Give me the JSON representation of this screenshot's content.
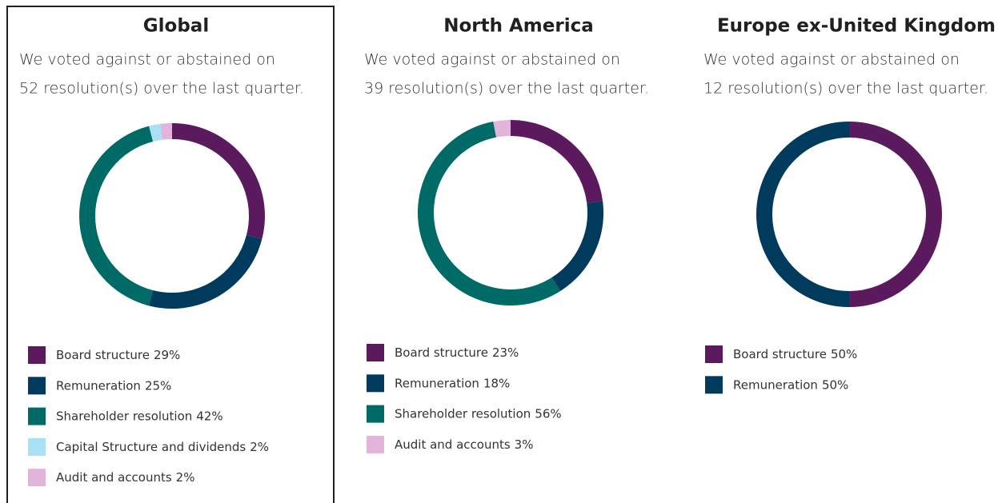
{
  "chart_data": [
    {
      "type": "pie",
      "title": "Global",
      "subtitle": [
        "We voted against or abstained on",
        "52 resolution(s) over the last quarter."
      ],
      "categories": [
        "Board structure",
        "Remuneration",
        "Shareholder resolution",
        "Capital Structure and dividends",
        "Audit and accounts"
      ],
      "values": [
        29,
        25,
        42,
        2,
        2
      ],
      "value_labels": [
        "29%",
        "25%",
        "42%",
        "2%",
        "2%"
      ],
      "colors": [
        "#5b1a5e",
        "#003a5d",
        "#006a66",
        "#a9e0f3",
        "#e2b4d9"
      ]
    },
    {
      "type": "pie",
      "title": "North America",
      "subtitle": [
        "We voted against or abstained on",
        "39 resolution(s) over the last quarter."
      ],
      "categories": [
        "Board structure",
        "Remuneration",
        "Shareholder resolution",
        "Audit and accounts"
      ],
      "values": [
        23,
        18,
        56,
        3
      ],
      "value_labels": [
        "23%",
        "18%",
        "56%",
        "3%"
      ],
      "colors": [
        "#5b1a5e",
        "#003a5d",
        "#006a66",
        "#e2b4d9"
      ]
    },
    {
      "type": "pie",
      "title": "Europe ex-United Kingdom",
      "subtitle": [
        "We voted against or abstained on",
        "12 resolution(s) over the last quarter."
      ],
      "categories": [
        "Board structure",
        "Remuneration"
      ],
      "values": [
        50,
        50
      ],
      "value_labels": [
        "50%",
        "50%"
      ],
      "colors": [
        "#5b1a5e",
        "#003a5d"
      ]
    }
  ]
}
